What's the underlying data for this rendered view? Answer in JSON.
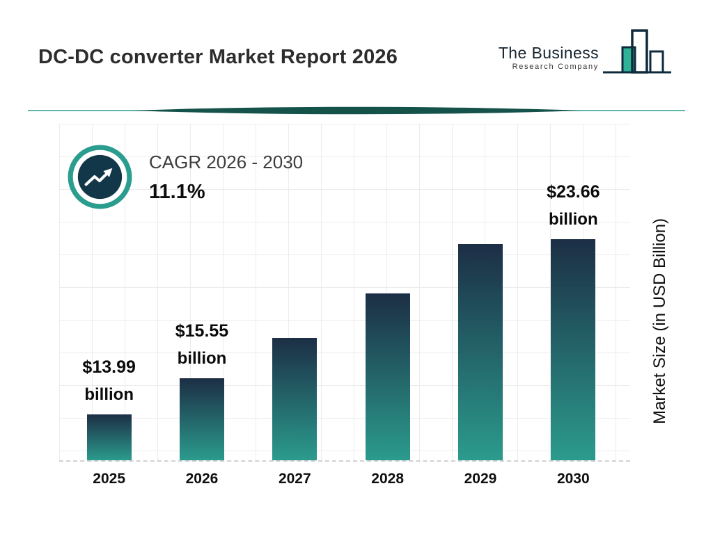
{
  "page": {
    "title": "DC-DC converter Market Report 2026"
  },
  "logo": {
    "line1": "The Business",
    "line2": "Research Company"
  },
  "cagr": {
    "label": "CAGR 2026 - 2030",
    "value": "11.1%"
  },
  "chart_data": {
    "type": "bar",
    "title": "DC-DC converter Market Report 2026",
    "xlabel": "",
    "ylabel": "Market Size (in USD Billion)",
    "categories": [
      "2025",
      "2026",
      "2027",
      "2028",
      "2029",
      "2030"
    ],
    "values": [
      13.99,
      15.55,
      17.28,
      19.19,
      21.32,
      23.66
    ],
    "ylim": [
      12,
      24
    ],
    "grid": true,
    "legend": false,
    "value_labels_visible": [
      "2025",
      "2026",
      "2030"
    ],
    "bars": [
      {
        "year": "2025",
        "value": 13.99,
        "label_line1": "$13.99",
        "label_line2": "billion"
      },
      {
        "year": "2026",
        "value": 15.55,
        "label_line1": "$15.55",
        "label_line2": "billion"
      },
      {
        "year": "2027",
        "value": 17.28
      },
      {
        "year": "2028",
        "value": 19.19
      },
      {
        "year": "2029",
        "value": 21.32
      },
      {
        "year": "2030",
        "value": 23.66,
        "label_line1": "$23.66",
        "label_line2": "billion"
      }
    ],
    "colors": {
      "bar_gradient_top": "#1c2e45",
      "bar_gradient_bottom": "#2b9b8d",
      "accent_teal": "#2a9d8f",
      "dark_navy": "#113749",
      "divider_fill": "#14524a",
      "gridline": "#ececec"
    }
  }
}
